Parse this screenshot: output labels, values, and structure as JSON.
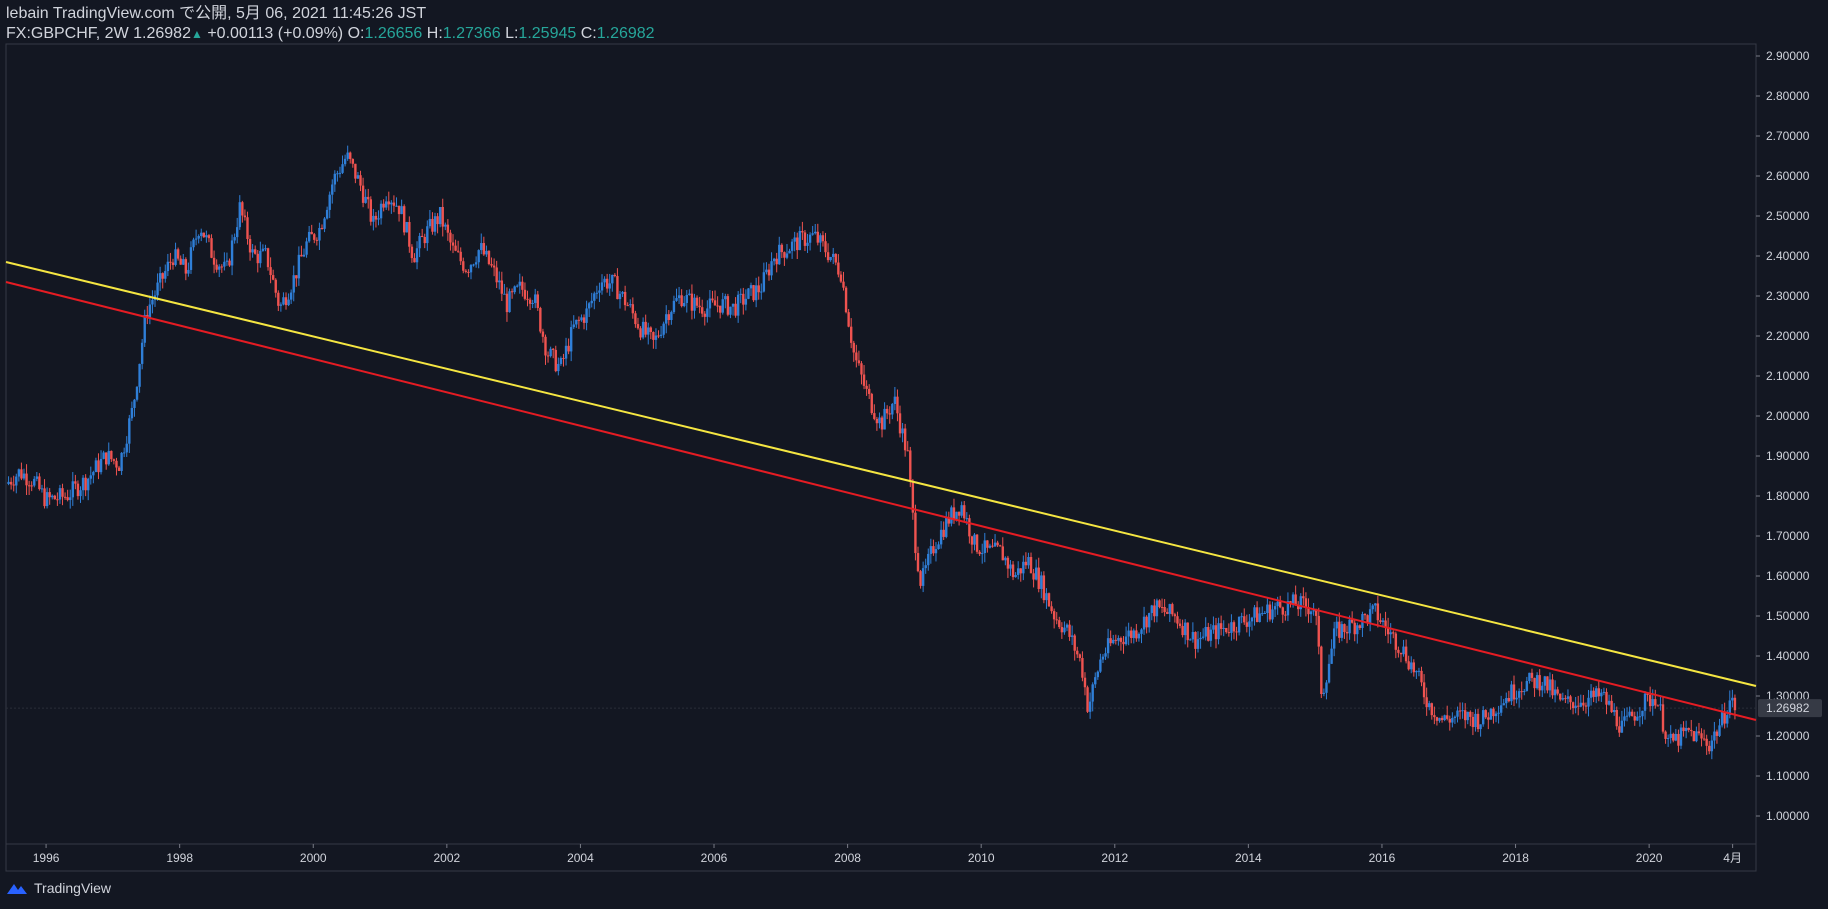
{
  "header": {
    "line1": "lebain TradingView.com で公開, 5月 06, 2021 11:45:26 JST",
    "symbol": "FX:GBPCHF, 2W",
    "last": "1.26982",
    "change": "+0.00113 (+0.09%)",
    "o_label": "O:",
    "o_value": "1.26656",
    "h_label": "H:",
    "h_value": "1.27366",
    "l_label": "L:",
    "l_value": "1.25945",
    "c_label": "C:",
    "c_value": "1.26982",
    "up_arrow": "▲"
  },
  "footer": {
    "brand": "TradingView",
    "logo_icon": "tradingview-logo-icon"
  },
  "colors": {
    "background": "#131722",
    "up_candle": "#2f7fd8",
    "down_candle": "#ef5350",
    "yellow_line": "#f5e642",
    "red_line": "#e51c23",
    "axis_text": "#d1d4dc",
    "price_label_bg": "#363a45"
  },
  "chart_data": {
    "type": "candlestick",
    "symbol": "FX:GBPCHF",
    "interval": "2W",
    "x_tick_labels": [
      "1996",
      "1998",
      "2000",
      "2002",
      "2004",
      "2006",
      "2008",
      "2010",
      "2012",
      "2014",
      "2016",
      "2018",
      "2020",
      "4月"
    ],
    "x_tick_values": [
      1996,
      1998,
      2000,
      2002,
      2004,
      2006,
      2008,
      2010,
      2012,
      2014,
      2016,
      2018,
      2020,
      2021.25
    ],
    "x_range": [
      1995.4,
      2021.6
    ],
    "y_tick_labels": [
      "1.00000",
      "1.10000",
      "1.20000",
      "1.30000",
      "1.40000",
      "1.50000",
      "1.60000",
      "1.70000",
      "1.80000",
      "1.90000",
      "2.00000",
      "2.10000",
      "2.20000",
      "2.30000",
      "2.40000",
      "2.50000",
      "2.60000",
      "2.70000",
      "2.80000",
      "2.90000"
    ],
    "y_range": [
      0.93,
      2.93
    ],
    "current_price_label": "1.26982",
    "current_price": 1.26982,
    "price_path": [
      [
        1995.4,
        1.83
      ],
      [
        1995.6,
        1.86
      ],
      [
        1995.8,
        1.84
      ],
      [
        1996.0,
        1.79
      ],
      [
        1996.3,
        1.8
      ],
      [
        1996.6,
        1.84
      ],
      [
        1996.9,
        1.9
      ],
      [
        1997.1,
        1.88
      ],
      [
        1997.3,
        2.02
      ],
      [
        1997.5,
        2.26
      ],
      [
        1997.7,
        2.33
      ],
      [
        1997.9,
        2.4
      ],
      [
        1998.1,
        2.36
      ],
      [
        1998.3,
        2.48
      ],
      [
        1998.5,
        2.4
      ],
      [
        1998.7,
        2.36
      ],
      [
        1998.9,
        2.52
      ],
      [
        1999.1,
        2.4
      ],
      [
        1999.3,
        2.4
      ],
      [
        1999.5,
        2.27
      ],
      [
        1999.7,
        2.34
      ],
      [
        1999.9,
        2.43
      ],
      [
        2000.1,
        2.47
      ],
      [
        2000.3,
        2.59
      ],
      [
        2000.5,
        2.65
      ],
      [
        2000.7,
        2.58
      ],
      [
        2000.9,
        2.48
      ],
      [
        2001.1,
        2.56
      ],
      [
        2001.3,
        2.52
      ],
      [
        2001.5,
        2.4
      ],
      [
        2001.7,
        2.46
      ],
      [
        2001.9,
        2.5
      ],
      [
        2002.1,
        2.41
      ],
      [
        2002.3,
        2.37
      ],
      [
        2002.5,
        2.42
      ],
      [
        2002.7,
        2.36
      ],
      [
        2002.9,
        2.28
      ],
      [
        2003.1,
        2.32
      ],
      [
        2003.3,
        2.3
      ],
      [
        2003.5,
        2.16
      ],
      [
        2003.7,
        2.12
      ],
      [
        2003.9,
        2.22
      ],
      [
        2004.1,
        2.26
      ],
      [
        2004.3,
        2.34
      ],
      [
        2004.5,
        2.33
      ],
      [
        2004.7,
        2.28
      ],
      [
        2004.9,
        2.22
      ],
      [
        2005.1,
        2.18
      ],
      [
        2005.3,
        2.26
      ],
      [
        2005.5,
        2.3
      ],
      [
        2005.7,
        2.28
      ],
      [
        2005.9,
        2.27
      ],
      [
        2006.1,
        2.28
      ],
      [
        2006.3,
        2.27
      ],
      [
        2006.5,
        2.3
      ],
      [
        2006.7,
        2.32
      ],
      [
        2006.9,
        2.4
      ],
      [
        2007.1,
        2.42
      ],
      [
        2007.3,
        2.44
      ],
      [
        2007.5,
        2.45
      ],
      [
        2007.7,
        2.41
      ],
      [
        2007.9,
        2.36
      ],
      [
        2008.1,
        2.15
      ],
      [
        2008.3,
        2.05
      ],
      [
        2008.5,
        1.98
      ],
      [
        2008.7,
        2.04
      ],
      [
        2008.9,
        1.9
      ],
      [
        2009.0,
        1.7
      ],
      [
        2009.1,
        1.58
      ],
      [
        2009.3,
        1.68
      ],
      [
        2009.5,
        1.74
      ],
      [
        2009.7,
        1.78
      ],
      [
        2009.9,
        1.68
      ],
      [
        2010.1,
        1.66
      ],
      [
        2010.3,
        1.66
      ],
      [
        2010.5,
        1.6
      ],
      [
        2010.7,
        1.64
      ],
      [
        2010.9,
        1.58
      ],
      [
        2011.1,
        1.5
      ],
      [
        2011.3,
        1.46
      ],
      [
        2011.5,
        1.38
      ],
      [
        2011.6,
        1.27
      ],
      [
        2011.8,
        1.4
      ],
      [
        2012.0,
        1.44
      ],
      [
        2012.3,
        1.46
      ],
      [
        2012.6,
        1.52
      ],
      [
        2012.9,
        1.5
      ],
      [
        2013.2,
        1.44
      ],
      [
        2013.5,
        1.46
      ],
      [
        2013.8,
        1.48
      ],
      [
        2014.1,
        1.5
      ],
      [
        2014.4,
        1.52
      ],
      [
        2014.7,
        1.53
      ],
      [
        2015.0,
        1.52
      ],
      [
        2015.1,
        1.3
      ],
      [
        2015.3,
        1.46
      ],
      [
        2015.6,
        1.48
      ],
      [
        2015.9,
        1.51
      ],
      [
        2016.1,
        1.46
      ],
      [
        2016.3,
        1.42
      ],
      [
        2016.5,
        1.36
      ],
      [
        2016.7,
        1.28
      ],
      [
        2016.9,
        1.24
      ],
      [
        2017.2,
        1.25
      ],
      [
        2017.5,
        1.24
      ],
      [
        2017.8,
        1.29
      ],
      [
        2018.1,
        1.33
      ],
      [
        2018.4,
        1.34
      ],
      [
        2018.7,
        1.28
      ],
      [
        2019.0,
        1.29
      ],
      [
        2019.3,
        1.3
      ],
      [
        2019.6,
        1.22
      ],
      [
        2019.9,
        1.28
      ],
      [
        2020.1,
        1.3
      ],
      [
        2020.3,
        1.18
      ],
      [
        2020.6,
        1.21
      ],
      [
        2020.9,
        1.18
      ],
      [
        2021.1,
        1.24
      ],
      [
        2021.2,
        1.29
      ],
      [
        2021.3,
        1.27
      ]
    ],
    "trendlines": [
      {
        "color": "yellow",
        "x": [
          1995.4,
          2021.6
        ],
        "y": [
          2.385,
          1.325
        ]
      },
      {
        "color": "red",
        "x": [
          1995.4,
          2021.6
        ],
        "y": [
          2.335,
          1.24
        ]
      }
    ],
    "grid": false,
    "legend": "none"
  }
}
